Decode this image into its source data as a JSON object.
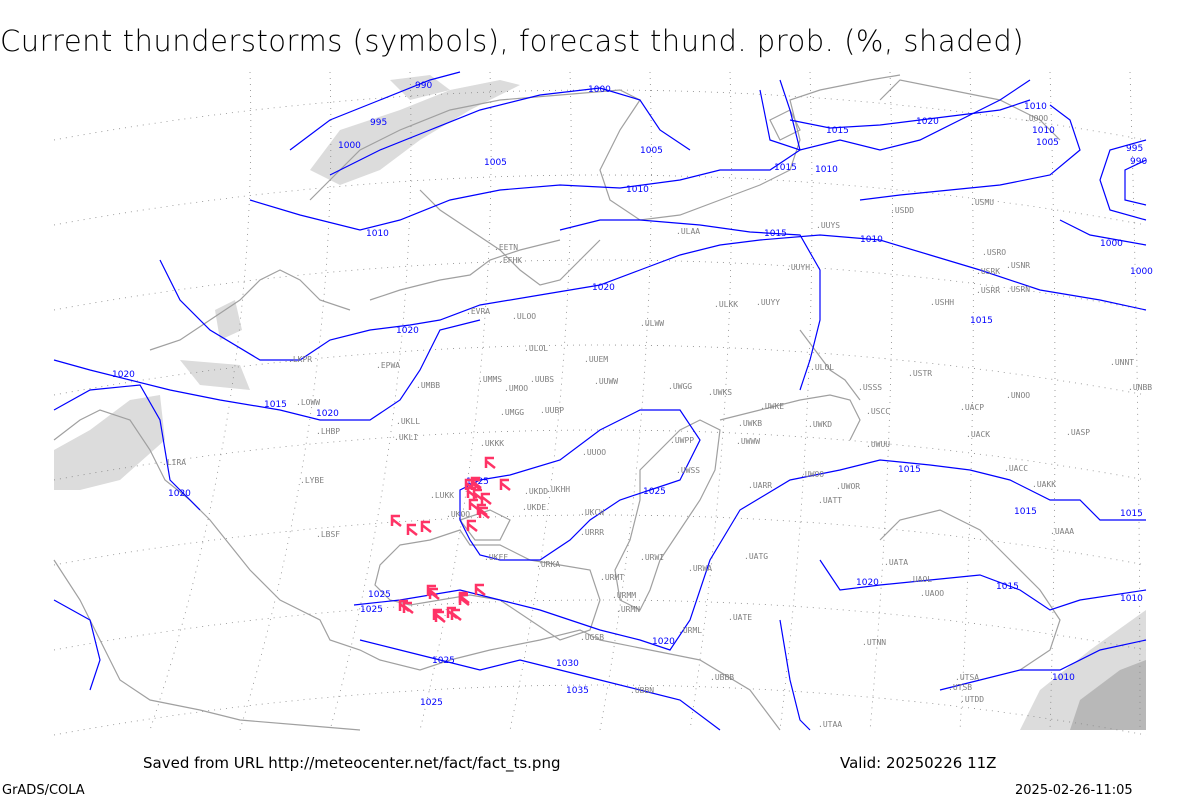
{
  "title": "Current thunderstorms (symbols), forecast thund. prob. (%, shaded)",
  "footer": {
    "source": "Saved from URL http://meteocenter.net/fact/fact_ts.png",
    "valid": "Valid: 20250226 11Z",
    "software": "GrADS/COLA",
    "timestamp": "2025-02-26-11:05"
  },
  "colors": {
    "isobars": "#0000ff",
    "coastlines": "#a0a0a0",
    "thunderstorm_symbol": "#ff3366",
    "probability_shading": "#d8d8d8",
    "grid": "#888888"
  },
  "isobar_labels": [
    "990",
    "995",
    "1000",
    "1005",
    "1000",
    "1005",
    "1010",
    "1010",
    "1015",
    "1020",
    "1020",
    "1015",
    "1020",
    "1010",
    "1015",
    "1010",
    "1015",
    "1020",
    "1025",
    "1025",
    "1025",
    "1025",
    "1025",
    "1030",
    "1035",
    "1025",
    "1020",
    "1020",
    "1015",
    "1015",
    "1015",
    "1010",
    "1010",
    "1020",
    "995",
    "990",
    "1000",
    "1010",
    "1010",
    "1005",
    "1000",
    "1015",
    "1015",
    "1020"
  ],
  "station_labels": [
    "EFHK",
    "EETN",
    "EVRA",
    "ULOO",
    "ULOL",
    "EPWA",
    "UMMS",
    "UMOO",
    "UUBS",
    "UUEM",
    "UUWW",
    "UMBB",
    "UKLL",
    "UKLI",
    "UKKK",
    "UMGG",
    "UUBP",
    "UUOO",
    "UKHH",
    "UKDD",
    "UKDE",
    "LUKK",
    "UKOO",
    "UKFF",
    "URKA",
    "URRR",
    "UKCW",
    "URMT",
    "URMM",
    "URMN",
    "UGSB",
    "LBSF",
    "LYBE",
    "LHBP",
    "LKPR",
    "LOWW",
    "LIRA",
    "ULAA",
    "UUYY",
    "UUYH",
    "UUYS",
    "ULKK",
    "ULWW",
    "UWGG",
    "UWKS",
    "UWKE",
    "UWKB",
    "UWKD",
    "UWWW",
    "UWPP",
    "UWSS",
    "UWUU",
    "UARR",
    "UATT",
    "UWOO",
    "UWOR",
    "UATG",
    "URWA",
    "URWI",
    "UATE",
    "URML",
    "UAOL",
    "UAOO",
    "UATA",
    "USSS",
    "USCC",
    "USTR",
    "USHH",
    "USRR",
    "USRN",
    "USNR",
    "USRK",
    "USRO",
    "UACP",
    "UACK",
    "UNOO",
    "UASP",
    "UACC",
    "UAKK",
    "UAAA",
    "UNBB",
    "UNNT",
    "USMU",
    "USDD",
    "ULOL",
    "UOOO",
    "UTNN",
    "UTAA",
    "UTSA",
    "UTSB",
    "UTDD",
    "UBBB",
    "UBBN"
  ],
  "thunderstorm_symbol": "thunderstorm-icon",
  "thunderstorm_count": 26
}
